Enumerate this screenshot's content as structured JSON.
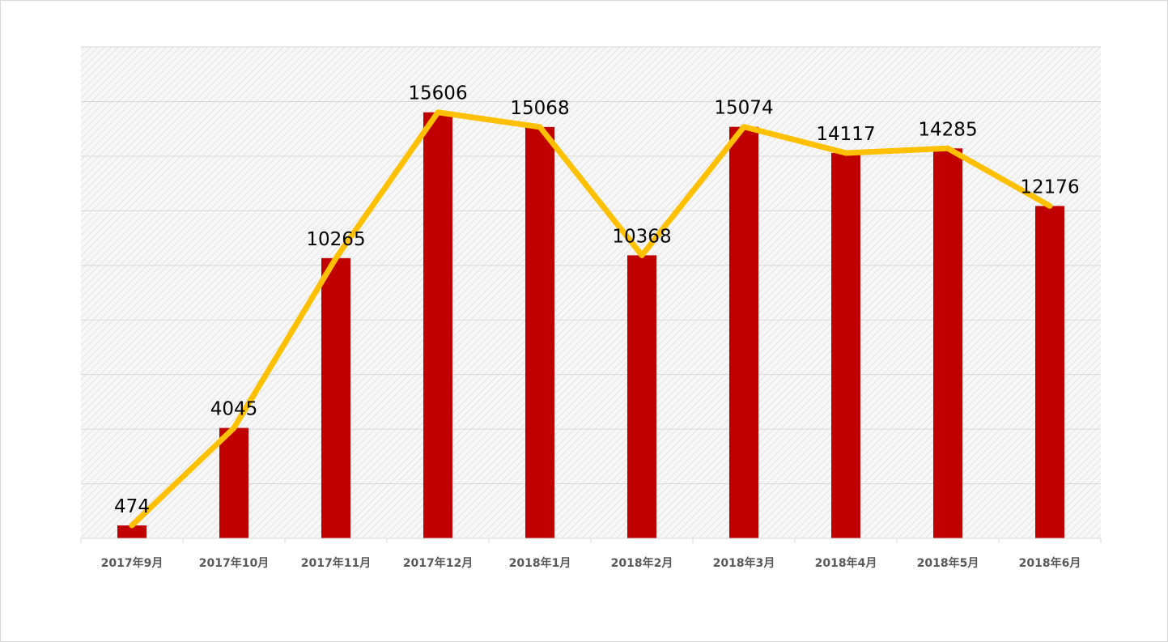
{
  "chart_data": {
    "type": "bar+line",
    "categories": [
      "2017年9月",
      "2017年10月",
      "2017年11月",
      "2017年12月",
      "2018年1月",
      "2018年2月",
      "2018年3月",
      "2018年4月",
      "2018年5月",
      "2018年6月"
    ],
    "series": [
      {
        "kind": "bar",
        "values": [
          474,
          4045,
          10265,
          15606,
          15068,
          10368,
          15074,
          14117,
          14285,
          12176
        ],
        "color": "#c00000"
      },
      {
        "kind": "line",
        "values": [
          474,
          4045,
          10265,
          15606,
          15068,
          10368,
          15074,
          14117,
          14285,
          12176
        ],
        "color": "#ffc000"
      }
    ],
    "ylim": [
      0,
      18000
    ],
    "grid": true,
    "legend": "none",
    "data_labels": [
      "474",
      "4045",
      "10265",
      "15606",
      "15068",
      "10368",
      "15074",
      "14117",
      "14285",
      "12176"
    ]
  },
  "colors": {
    "bar": "#c00000",
    "line": "#ffc000",
    "plot_fill": "#f2f2f2",
    "grid": "#d9d9d9"
  }
}
